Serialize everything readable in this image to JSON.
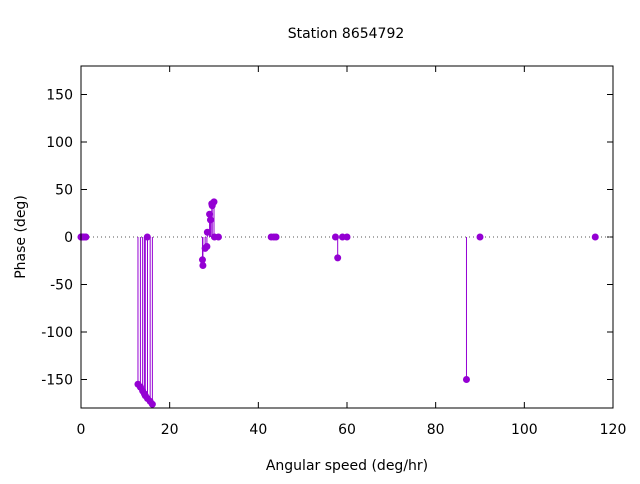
{
  "chart_data": {
    "type": "scatter",
    "title": "Station 8654792",
    "xlabel": "Angular speed (deg/hr)",
    "ylabel": "Phase (deg)",
    "xlim": [
      0,
      120
    ],
    "ylim": [
      -180,
      180
    ],
    "xticks": [
      "0",
      "20",
      "40",
      "60",
      "80",
      "100",
      "120"
    ],
    "yticks": [
      "-150",
      "-100",
      "-50",
      "0",
      "50",
      "100",
      "150"
    ],
    "grid": false,
    "zero_line": "dotted",
    "style": "impulses with points",
    "color": "#9400d3",
    "series": [
      {
        "points": [
          {
            "x": 0.0,
            "y": 0
          },
          {
            "x": 0.04,
            "y": 0
          },
          {
            "x": 0.08,
            "y": 0
          },
          {
            "x": 0.5,
            "y": 0
          },
          {
            "x": 0.55,
            "y": 0
          },
          {
            "x": 1.0,
            "y": 0
          },
          {
            "x": 1.1,
            "y": 0
          },
          {
            "x": 12.85,
            "y": -155
          },
          {
            "x": 13.4,
            "y": -158
          },
          {
            "x": 13.9,
            "y": -162
          },
          {
            "x": 14.3,
            "y": -165
          },
          {
            "x": 14.5,
            "y": -167
          },
          {
            "x": 14.96,
            "y": 0
          },
          {
            "x": 15.0,
            "y": -170
          },
          {
            "x": 15.6,
            "y": -173
          },
          {
            "x": 16.1,
            "y": -176
          },
          {
            "x": 27.4,
            "y": -24
          },
          {
            "x": 27.5,
            "y": -30
          },
          {
            "x": 28.0,
            "y": -12
          },
          {
            "x": 28.4,
            "y": -10
          },
          {
            "x": 28.5,
            "y": 5
          },
          {
            "x": 29.0,
            "y": 24
          },
          {
            "x": 29.2,
            "y": 18
          },
          {
            "x": 29.5,
            "y": 35
          },
          {
            "x": 29.6,
            "y": 33
          },
          {
            "x": 30.0,
            "y": 37
          },
          {
            "x": 30.1,
            "y": 0
          },
          {
            "x": 31.0,
            "y": 0
          },
          {
            "x": 42.9,
            "y": 0
          },
          {
            "x": 43.5,
            "y": 0
          },
          {
            "x": 44.0,
            "y": 0
          },
          {
            "x": 57.4,
            "y": 0
          },
          {
            "x": 57.9,
            "y": -22
          },
          {
            "x": 58.98,
            "y": 0
          },
          {
            "x": 60.0,
            "y": 0
          },
          {
            "x": 86.95,
            "y": -150
          },
          {
            "x": 90.0,
            "y": 0
          },
          {
            "x": 116.0,
            "y": 0
          }
        ]
      }
    ]
  }
}
